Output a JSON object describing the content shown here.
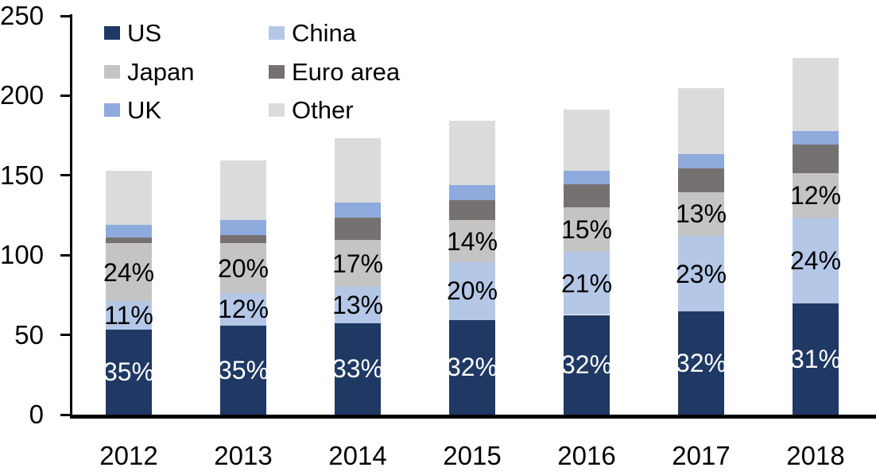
{
  "chart_data": {
    "type": "bar",
    "stacked": true,
    "title": "",
    "categories": [
      "2012",
      "2013",
      "2014",
      "2015",
      "2016",
      "2017",
      "2018"
    ],
    "series": [
      {
        "name": "US",
        "color": "#1F3864",
        "values": [
          53.5,
          56,
          57.5,
          59.5,
          62.5,
          64.5,
          69.5
        ],
        "segment_labels": [
          "35%",
          "35%",
          "33%",
          "32%",
          "32%",
          "32%",
          "31%"
        ],
        "label_color": "#FFFFFF"
      },
      {
        "name": "China",
        "color": "#B4C7E7",
        "values": [
          17.5,
          20,
          22.5,
          36,
          39.5,
          47.5,
          54
        ],
        "segment_labels": [
          "11%",
          "12%",
          "13%",
          "20%",
          "21%",
          "23%",
          "24%"
        ],
        "label_color": "#000000"
      },
      {
        "name": "Japan",
        "color": "#C4C4C4",
        "values": [
          36.5,
          31.5,
          29.5,
          26.5,
          28,
          27.5,
          28
        ],
        "segment_labels": [
          "24%",
          "20%",
          "17%",
          "14%",
          "15%",
          "13%",
          "12%"
        ],
        "label_color": "#000000"
      },
      {
        "name": "Euro area",
        "color": "#767171",
        "values": [
          3.5,
          5,
          14,
          12.5,
          14.5,
          15,
          18
        ],
        "segment_labels": [
          "",
          "",
          "",
          "",
          "",
          "",
          ""
        ],
        "label_color": "#000000"
      },
      {
        "name": "UK",
        "color": "#8FAADC",
        "values": [
          8,
          9.5,
          9.5,
          9.5,
          8.5,
          9,
          8.5
        ],
        "segment_labels": [
          "",
          "",
          "",
          "",
          "",
          "",
          ""
        ],
        "label_color": "#000000"
      },
      {
        "name": "Other",
        "color": "#DBDBDB",
        "values": [
          34,
          37.5,
          40.5,
          40.5,
          38,
          41,
          45.5
        ],
        "segment_labels": [
          "",
          "",
          "",
          "",
          "",
          "",
          ""
        ],
        "label_color": "#000000"
      }
    ],
    "totals": [
      153,
      159.5,
      173.5,
      184.5,
      191,
      204.5,
      223.5
    ],
    "xlabel": "",
    "ylabel": "",
    "ylim": [
      0,
      250
    ],
    "y_tick_step": 50,
    "y_tick_labels": [
      "0",
      "50",
      "100",
      "150",
      "200",
      "250"
    ],
    "grid": false,
    "legend": {
      "position": "top-left-inside",
      "columns": [
        [
          "US",
          "Japan",
          "UK"
        ],
        [
          "China",
          "Euro area",
          "Other"
        ]
      ]
    },
    "axis_color": "#000000",
    "text_color": "#000000"
  }
}
